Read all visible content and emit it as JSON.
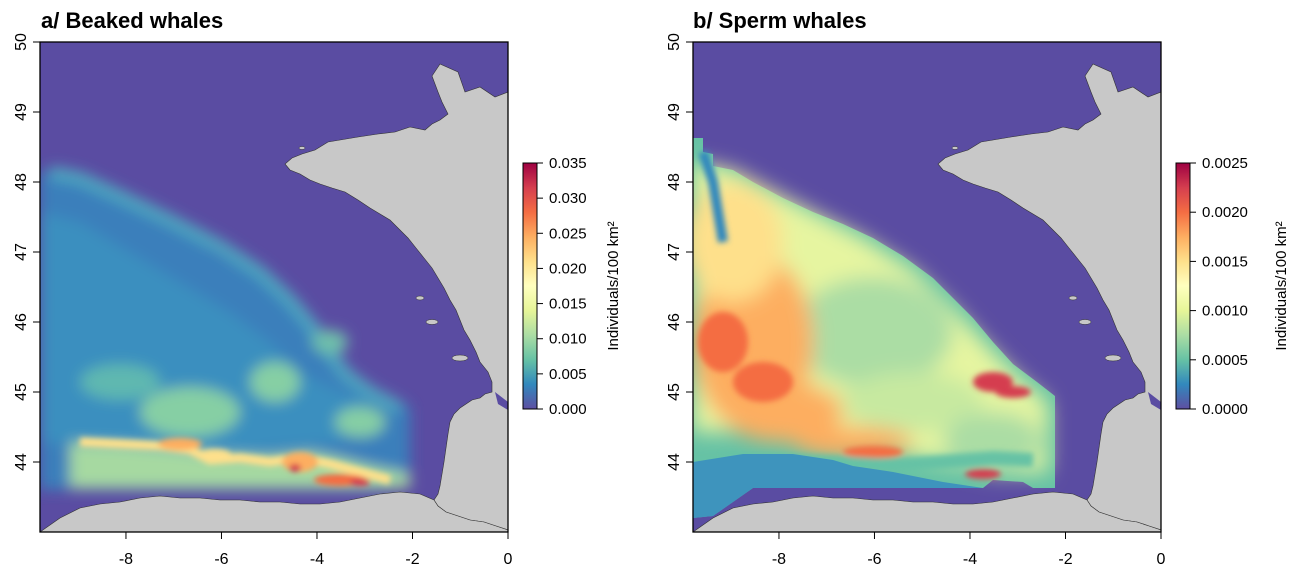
{
  "colors": {
    "sea": "#5a4ca2",
    "land": "#c8c8c8",
    "frame": "#000000",
    "palette_spectral_r": [
      "#5e4fa2",
      "#3288bd",
      "#66c2a5",
      "#abdda4",
      "#e6f598",
      "#ffffbf",
      "#fee08b",
      "#fdae61",
      "#f46d43",
      "#d53e4f",
      "#9e0142"
    ]
  },
  "x_axis": {
    "ticks": [
      "-8",
      "-6",
      "-4",
      "-2",
      "0"
    ],
    "range": [
      -9.8,
      0
    ]
  },
  "y_axis": {
    "ticks": [
      "50",
      "49",
      "48",
      "47",
      "46",
      "45",
      "44"
    ],
    "range": [
      43,
      50
    ]
  },
  "panels": [
    {
      "id": "a",
      "title": "a/ Beaked whales",
      "colorbar": {
        "label": "Individuals/100 km²",
        "ticks": [
          "0.035",
          "0.030",
          "0.025",
          "0.020",
          "0.015",
          "0.010",
          "0.005",
          "0.000"
        ],
        "range": [
          0,
          0.035
        ]
      }
    },
    {
      "id": "b",
      "title": "b/ Sperm whales",
      "colorbar": {
        "label": "Individuals/100 km²",
        "ticks": [
          "0.0025",
          "0.0020",
          "0.0015",
          "0.0010",
          "0.0005",
          "0.0000"
        ],
        "range": [
          0,
          0.0025
        ]
      }
    }
  ]
}
